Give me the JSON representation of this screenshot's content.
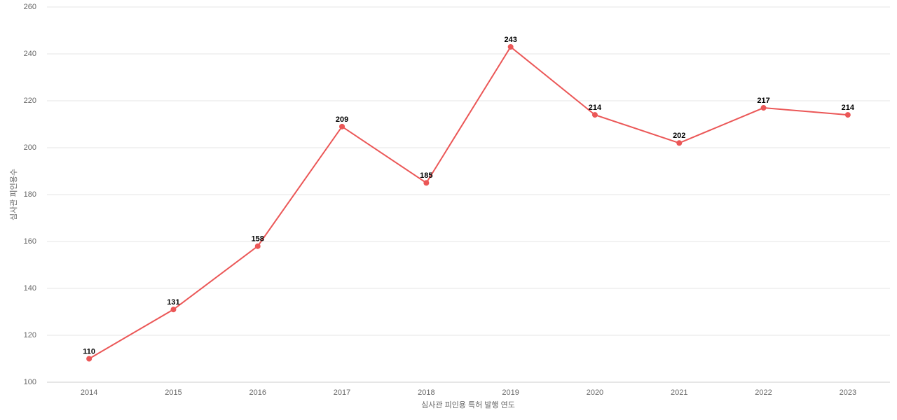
{
  "chart_data": {
    "type": "line",
    "x_label": "심사관 피인용 특허 발행 연도",
    "y_label": "심사관 피인용수",
    "categories": [
      "2014",
      "2015",
      "2016",
      "2017",
      "2018",
      "2019",
      "2020",
      "2021",
      "2022",
      "2023"
    ],
    "values": [
      110,
      131,
      158,
      209,
      185,
      243,
      214,
      202,
      217,
      214
    ],
    "color": "#eb5757",
    "ylim": [
      100,
      260
    ],
    "yticks": [
      100,
      120,
      140,
      160,
      180,
      200,
      220,
      240,
      260
    ],
    "grid": true
  }
}
